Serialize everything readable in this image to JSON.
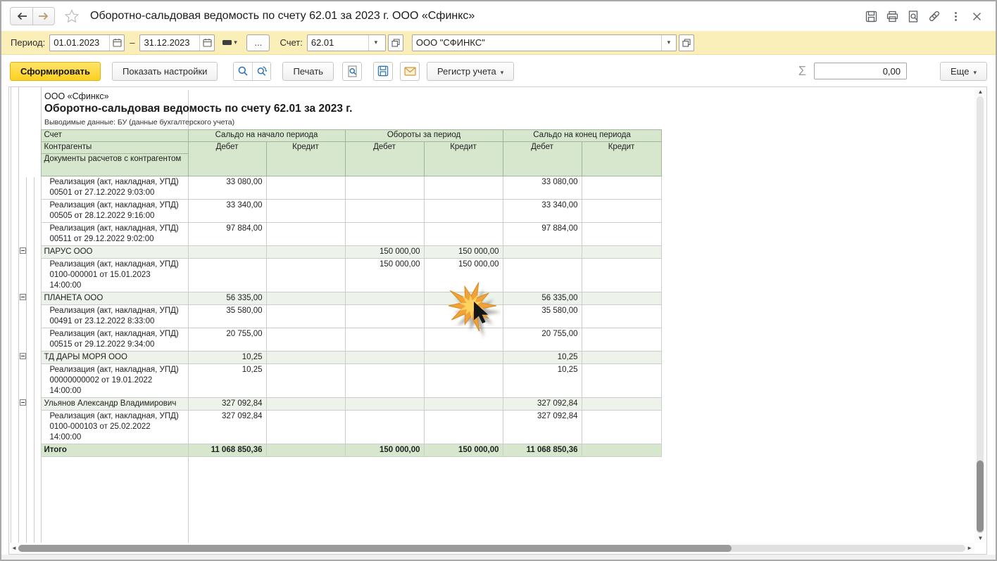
{
  "titlebar": {
    "title": "Оборотно-сальдовая ведомость по счету 62.01 за 2023 г. ООО «Сфинкс»"
  },
  "filters": {
    "period_label": "Период:",
    "date_from": "01.01.2023",
    "dash": "–",
    "date_to": "31.12.2023",
    "ellipsis": "...",
    "account_label": "Счет:",
    "account": "62.01",
    "organization": "ООО \"СФИНКС\""
  },
  "actions": {
    "generate": "Сформировать",
    "settings": "Показать настройки",
    "print": "Печать",
    "register": "Регистр учета",
    "sigma": "Σ",
    "sum_value": "0,00",
    "more": "Еще"
  },
  "report": {
    "company": "ООО «Сфинкс»",
    "title": "Оборотно-сальдовая ведомость по счету 62.01 за 2023 г.",
    "data_note": "Выводимые данные: БУ (данные бухгалтерского учета)",
    "header": {
      "account": "Счет",
      "counterparties": "Контрагенты",
      "documents": "Документы расчетов с контрагентом",
      "opening": "Сальдо на начало периода",
      "turnover": "Обороты за период",
      "closing": "Сальдо на конец периода",
      "debit": "Дебет",
      "credit": "Кредит"
    },
    "rows": [
      {
        "type": "doc",
        "label": "Реализация (акт, накладная, УПД) 00501 от 27.12.2022 9:03:00",
        "values": [
          "33 080,00",
          "",
          "",
          "",
          "33 080,00",
          ""
        ]
      },
      {
        "type": "doc",
        "label": "Реализация (акт, накладная, УПД) 00505 от 28.12.2022 9:16:00",
        "values": [
          "33 340,00",
          "",
          "",
          "",
          "33 340,00",
          ""
        ]
      },
      {
        "type": "doc",
        "label": "Реализация (акт, накладная, УПД) 00511 от 29.12.2022 9:02:00",
        "values": [
          "97 884,00",
          "",
          "",
          "",
          "97 884,00",
          ""
        ]
      },
      {
        "type": "group",
        "label": "ПАРУС ООО",
        "values": [
          "",
          "",
          "150 000,00",
          "150 000,00",
          "",
          ""
        ]
      },
      {
        "type": "doc",
        "label": "Реализация (акт, накладная, УПД) 0100-000001 от 15.01.2023 14:00:00",
        "values": [
          "",
          "",
          "150 000,00",
          "150 000,00",
          "",
          ""
        ]
      },
      {
        "type": "group",
        "label": "ПЛАНЕТА ООО",
        "values": [
          "56 335,00",
          "",
          "",
          "",
          "56 335,00",
          ""
        ]
      },
      {
        "type": "doc",
        "label": "Реализация (акт, накладная, УПД) 00491 от 23.12.2022 8:33:00",
        "values": [
          "35 580,00",
          "",
          "",
          "",
          "35 580,00",
          ""
        ]
      },
      {
        "type": "doc",
        "label": "Реализация (акт, накладная, УПД) 00515 от 29.12.2022 9:34:00",
        "values": [
          "20 755,00",
          "",
          "",
          "",
          "20 755,00",
          ""
        ]
      },
      {
        "type": "group",
        "label": "ТД ДАРЫ МОРЯ ООО",
        "values": [
          "10,25",
          "",
          "",
          "",
          "10,25",
          ""
        ]
      },
      {
        "type": "doc",
        "label": "Реализация (акт, накладная, УПД) 00000000002 от 19.01.2022 14:00:00",
        "values": [
          "10,25",
          "",
          "",
          "",
          "10,25",
          ""
        ]
      },
      {
        "type": "group",
        "label": "Ульянов Александр Владимирович",
        "values": [
          "327 092,84",
          "",
          "",
          "",
          "327 092,84",
          ""
        ]
      },
      {
        "type": "doc",
        "label": "Реализация (акт, накладная, УПД) 0100-000103 от 25.02.2022 14:00:00",
        "values": [
          "327 092,84",
          "",
          "",
          "",
          "327 092,84",
          ""
        ]
      },
      {
        "type": "total",
        "label": "Итого",
        "values": [
          "11 068 850,36",
          "",
          "150 000,00",
          "150 000,00",
          "11 068 850,36",
          ""
        ]
      }
    ]
  },
  "colors": {
    "panel_yellow": "#fbefb9",
    "accent_yellow": "#fdd01f",
    "header_green": "#d6e7ce",
    "group_green": "#edf3ea",
    "starburst_orange": "#f1a33a"
  }
}
